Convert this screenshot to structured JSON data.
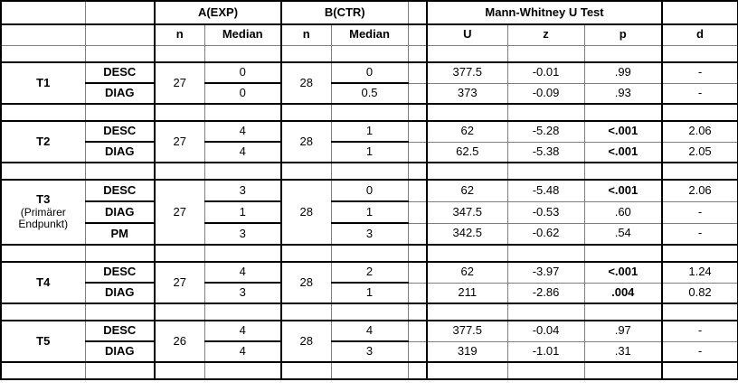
{
  "table": {
    "headers": {
      "group_a": "A(EXP)",
      "group_b": "B(CTR)",
      "group_mw": "Mann-Whitney U Test",
      "n": "n",
      "median": "Median",
      "u": "U",
      "z": "z",
      "p": "p",
      "d": "d"
    },
    "sections": [
      {
        "label": "T1",
        "sublabel": "",
        "n_a": "27",
        "n_b": "28",
        "rows": [
          {
            "measure": "DESC",
            "med_a": "0",
            "med_b": "0",
            "u": "377.5",
            "z": "-0.01",
            "p": ".99",
            "p_bold": false,
            "d": "-"
          },
          {
            "measure": "DIAG",
            "med_a": "0",
            "med_b": "0.5",
            "u": "373",
            "z": "-0.09",
            "p": ".93",
            "p_bold": false,
            "d": "-"
          }
        ]
      },
      {
        "label": "T2",
        "sublabel": "",
        "n_a": "27",
        "n_b": "28",
        "rows": [
          {
            "measure": "DESC",
            "med_a": "4",
            "med_b": "1",
            "u": "62",
            "z": "-5.28",
            "p": "<.001",
            "p_bold": true,
            "d": "2.06"
          },
          {
            "measure": "DIAG",
            "med_a": "4",
            "med_b": "1",
            "u": "62.5",
            "z": "-5.38",
            "p": "<.001",
            "p_bold": true,
            "d": "2.05"
          }
        ]
      },
      {
        "label": "T3",
        "sublabel": "(Primärer Endpunkt)",
        "n_a": "27",
        "n_b": "28",
        "rows": [
          {
            "measure": "DESC",
            "med_a": "3",
            "med_b": "0",
            "u": "62",
            "z": "-5.48",
            "p": "<.001",
            "p_bold": true,
            "d": "2.06"
          },
          {
            "measure": "DIAG",
            "med_a": "1",
            "med_b": "1",
            "u": "347.5",
            "z": "-0.53",
            "p": ".60",
            "p_bold": false,
            "d": "-"
          },
          {
            "measure": "PM",
            "med_a": "3",
            "med_b": "3",
            "u": "342.5",
            "z": "-0.62",
            "p": ".54",
            "p_bold": false,
            "d": "-"
          }
        ]
      },
      {
        "label": "T4",
        "sublabel": "",
        "n_a": "27",
        "n_b": "28",
        "rows": [
          {
            "measure": "DESC",
            "med_a": "4",
            "med_b": "2",
            "u": "62",
            "z": "-3.97",
            "p": "<.001",
            "p_bold": true,
            "d": "1.24"
          },
          {
            "measure": "DIAG",
            "med_a": "3",
            "med_b": "1",
            "u": "211",
            "z": "-2.86",
            "p": ".004",
            "p_bold": true,
            "d": "0.82"
          }
        ]
      },
      {
        "label": "T5",
        "sublabel": "",
        "n_a": "26",
        "n_b": "28",
        "rows": [
          {
            "measure": "DESC",
            "med_a": "4",
            "med_b": "4",
            "u": "377.5",
            "z": "-0.04",
            "p": ".97",
            "p_bold": false,
            "d": "-"
          },
          {
            "measure": "DIAG",
            "med_a": "4",
            "med_b": "3",
            "u": "319",
            "z": "-1.01",
            "p": ".31",
            "p_bold": false,
            "d": "-"
          }
        ]
      }
    ]
  }
}
